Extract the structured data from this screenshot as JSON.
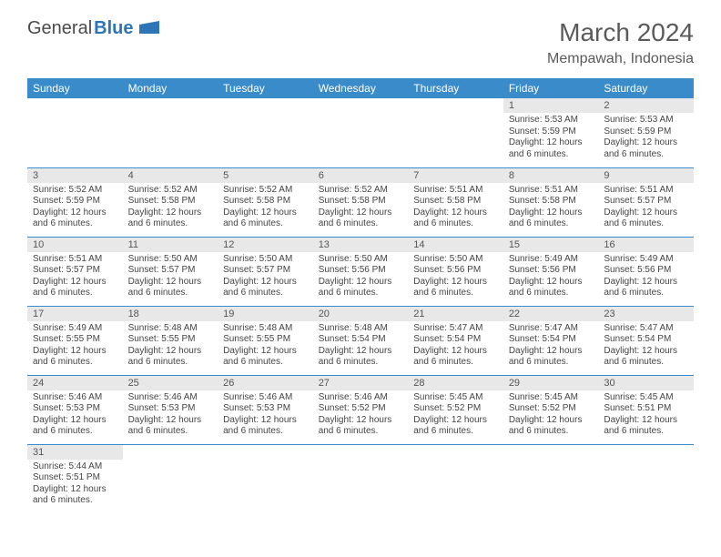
{
  "logo": {
    "word1": "General",
    "word2": "Blue"
  },
  "title": "March 2024",
  "location": "Mempawah, Indonesia",
  "colors": {
    "header_bg": "#3a8bc9",
    "header_text": "#ffffff",
    "daynum_bg": "#e8e8e8",
    "row_border": "#3a8bc9",
    "logo_accent": "#2e75b6",
    "text": "#5a5a5a"
  },
  "weekdays": [
    "Sunday",
    "Monday",
    "Tuesday",
    "Wednesday",
    "Thursday",
    "Friday",
    "Saturday"
  ],
  "weeks": [
    [
      null,
      null,
      null,
      null,
      null,
      {
        "n": "1",
        "sr": "Sunrise: 5:53 AM",
        "ss": "Sunset: 5:59 PM",
        "d1": "Daylight: 12 hours",
        "d2": "and 6 minutes."
      },
      {
        "n": "2",
        "sr": "Sunrise: 5:53 AM",
        "ss": "Sunset: 5:59 PM",
        "d1": "Daylight: 12 hours",
        "d2": "and 6 minutes."
      }
    ],
    [
      {
        "n": "3",
        "sr": "Sunrise: 5:52 AM",
        "ss": "Sunset: 5:59 PM",
        "d1": "Daylight: 12 hours",
        "d2": "and 6 minutes."
      },
      {
        "n": "4",
        "sr": "Sunrise: 5:52 AM",
        "ss": "Sunset: 5:58 PM",
        "d1": "Daylight: 12 hours",
        "d2": "and 6 minutes."
      },
      {
        "n": "5",
        "sr": "Sunrise: 5:52 AM",
        "ss": "Sunset: 5:58 PM",
        "d1": "Daylight: 12 hours",
        "d2": "and 6 minutes."
      },
      {
        "n": "6",
        "sr": "Sunrise: 5:52 AM",
        "ss": "Sunset: 5:58 PM",
        "d1": "Daylight: 12 hours",
        "d2": "and 6 minutes."
      },
      {
        "n": "7",
        "sr": "Sunrise: 5:51 AM",
        "ss": "Sunset: 5:58 PM",
        "d1": "Daylight: 12 hours",
        "d2": "and 6 minutes."
      },
      {
        "n": "8",
        "sr": "Sunrise: 5:51 AM",
        "ss": "Sunset: 5:58 PM",
        "d1": "Daylight: 12 hours",
        "d2": "and 6 minutes."
      },
      {
        "n": "9",
        "sr": "Sunrise: 5:51 AM",
        "ss": "Sunset: 5:57 PM",
        "d1": "Daylight: 12 hours",
        "d2": "and 6 minutes."
      }
    ],
    [
      {
        "n": "10",
        "sr": "Sunrise: 5:51 AM",
        "ss": "Sunset: 5:57 PM",
        "d1": "Daylight: 12 hours",
        "d2": "and 6 minutes."
      },
      {
        "n": "11",
        "sr": "Sunrise: 5:50 AM",
        "ss": "Sunset: 5:57 PM",
        "d1": "Daylight: 12 hours",
        "d2": "and 6 minutes."
      },
      {
        "n": "12",
        "sr": "Sunrise: 5:50 AM",
        "ss": "Sunset: 5:57 PM",
        "d1": "Daylight: 12 hours",
        "d2": "and 6 minutes."
      },
      {
        "n": "13",
        "sr": "Sunrise: 5:50 AM",
        "ss": "Sunset: 5:56 PM",
        "d1": "Daylight: 12 hours",
        "d2": "and 6 minutes."
      },
      {
        "n": "14",
        "sr": "Sunrise: 5:50 AM",
        "ss": "Sunset: 5:56 PM",
        "d1": "Daylight: 12 hours",
        "d2": "and 6 minutes."
      },
      {
        "n": "15",
        "sr": "Sunrise: 5:49 AM",
        "ss": "Sunset: 5:56 PM",
        "d1": "Daylight: 12 hours",
        "d2": "and 6 minutes."
      },
      {
        "n": "16",
        "sr": "Sunrise: 5:49 AM",
        "ss": "Sunset: 5:56 PM",
        "d1": "Daylight: 12 hours",
        "d2": "and 6 minutes."
      }
    ],
    [
      {
        "n": "17",
        "sr": "Sunrise: 5:49 AM",
        "ss": "Sunset: 5:55 PM",
        "d1": "Daylight: 12 hours",
        "d2": "and 6 minutes."
      },
      {
        "n": "18",
        "sr": "Sunrise: 5:48 AM",
        "ss": "Sunset: 5:55 PM",
        "d1": "Daylight: 12 hours",
        "d2": "and 6 minutes."
      },
      {
        "n": "19",
        "sr": "Sunrise: 5:48 AM",
        "ss": "Sunset: 5:55 PM",
        "d1": "Daylight: 12 hours",
        "d2": "and 6 minutes."
      },
      {
        "n": "20",
        "sr": "Sunrise: 5:48 AM",
        "ss": "Sunset: 5:54 PM",
        "d1": "Daylight: 12 hours",
        "d2": "and 6 minutes."
      },
      {
        "n": "21",
        "sr": "Sunrise: 5:47 AM",
        "ss": "Sunset: 5:54 PM",
        "d1": "Daylight: 12 hours",
        "d2": "and 6 minutes."
      },
      {
        "n": "22",
        "sr": "Sunrise: 5:47 AM",
        "ss": "Sunset: 5:54 PM",
        "d1": "Daylight: 12 hours",
        "d2": "and 6 minutes."
      },
      {
        "n": "23",
        "sr": "Sunrise: 5:47 AM",
        "ss": "Sunset: 5:54 PM",
        "d1": "Daylight: 12 hours",
        "d2": "and 6 minutes."
      }
    ],
    [
      {
        "n": "24",
        "sr": "Sunrise: 5:46 AM",
        "ss": "Sunset: 5:53 PM",
        "d1": "Daylight: 12 hours",
        "d2": "and 6 minutes."
      },
      {
        "n": "25",
        "sr": "Sunrise: 5:46 AM",
        "ss": "Sunset: 5:53 PM",
        "d1": "Daylight: 12 hours",
        "d2": "and 6 minutes."
      },
      {
        "n": "26",
        "sr": "Sunrise: 5:46 AM",
        "ss": "Sunset: 5:53 PM",
        "d1": "Daylight: 12 hours",
        "d2": "and 6 minutes."
      },
      {
        "n": "27",
        "sr": "Sunrise: 5:46 AM",
        "ss": "Sunset: 5:52 PM",
        "d1": "Daylight: 12 hours",
        "d2": "and 6 minutes."
      },
      {
        "n": "28",
        "sr": "Sunrise: 5:45 AM",
        "ss": "Sunset: 5:52 PM",
        "d1": "Daylight: 12 hours",
        "d2": "and 6 minutes."
      },
      {
        "n": "29",
        "sr": "Sunrise: 5:45 AM",
        "ss": "Sunset: 5:52 PM",
        "d1": "Daylight: 12 hours",
        "d2": "and 6 minutes."
      },
      {
        "n": "30",
        "sr": "Sunrise: 5:45 AM",
        "ss": "Sunset: 5:51 PM",
        "d1": "Daylight: 12 hours",
        "d2": "and 6 minutes."
      }
    ],
    [
      {
        "n": "31",
        "sr": "Sunrise: 5:44 AM",
        "ss": "Sunset: 5:51 PM",
        "d1": "Daylight: 12 hours",
        "d2": "and 6 minutes."
      },
      null,
      null,
      null,
      null,
      null,
      null
    ]
  ]
}
